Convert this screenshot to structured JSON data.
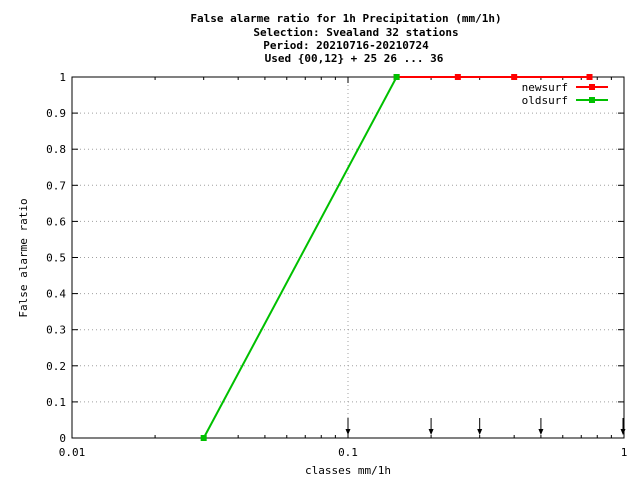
{
  "chart_data": {
    "type": "line",
    "title_lines": [
      "False alarme ratio  for 1h Precipitation (mm/1h)",
      "Selection: Svealand     32 stations",
      "Period: 20210716-20210724",
      "Used {00,12} + 25 26 ... 36"
    ],
    "xlabel": "classes mm/1h",
    "ylabel": "False alarme ratio",
    "x_scale": "log",
    "xlim": [
      0.01,
      1
    ],
    "ylim": [
      0,
      1
    ],
    "x_ticks": [
      {
        "value": 0.01,
        "label": "0.01"
      },
      {
        "value": 0.1,
        "label": "0.1"
      },
      {
        "value": 1,
        "label": "1"
      }
    ],
    "y_ticks": [
      {
        "value": 0,
        "label": "0"
      },
      {
        "value": 0.1,
        "label": "0.1"
      },
      {
        "value": 0.2,
        "label": "0.2"
      },
      {
        "value": 0.3,
        "label": "0.3"
      },
      {
        "value": 0.4,
        "label": "0.4"
      },
      {
        "value": 0.5,
        "label": "0.5"
      },
      {
        "value": 0.6,
        "label": "0.6"
      },
      {
        "value": 0.7,
        "label": "0.7"
      },
      {
        "value": 0.8,
        "label": "0.8"
      },
      {
        "value": 0.9,
        "label": "0.9"
      },
      {
        "value": 1,
        "label": "1"
      }
    ],
    "grid": true,
    "legend_position": "top-right",
    "series": [
      {
        "name": "newsurf",
        "color": "#ff0000",
        "x": [
          0.15,
          0.25,
          0.4,
          0.75
        ],
        "y": [
          1,
          1,
          1,
          1
        ]
      },
      {
        "name": "oldsurf",
        "color": "#00c000",
        "x": [
          0.03,
          0.15
        ],
        "y": [
          0,
          1
        ]
      }
    ],
    "class_markers": [
      0.1,
      0.2,
      0.3,
      0.5,
      1.0
    ]
  }
}
